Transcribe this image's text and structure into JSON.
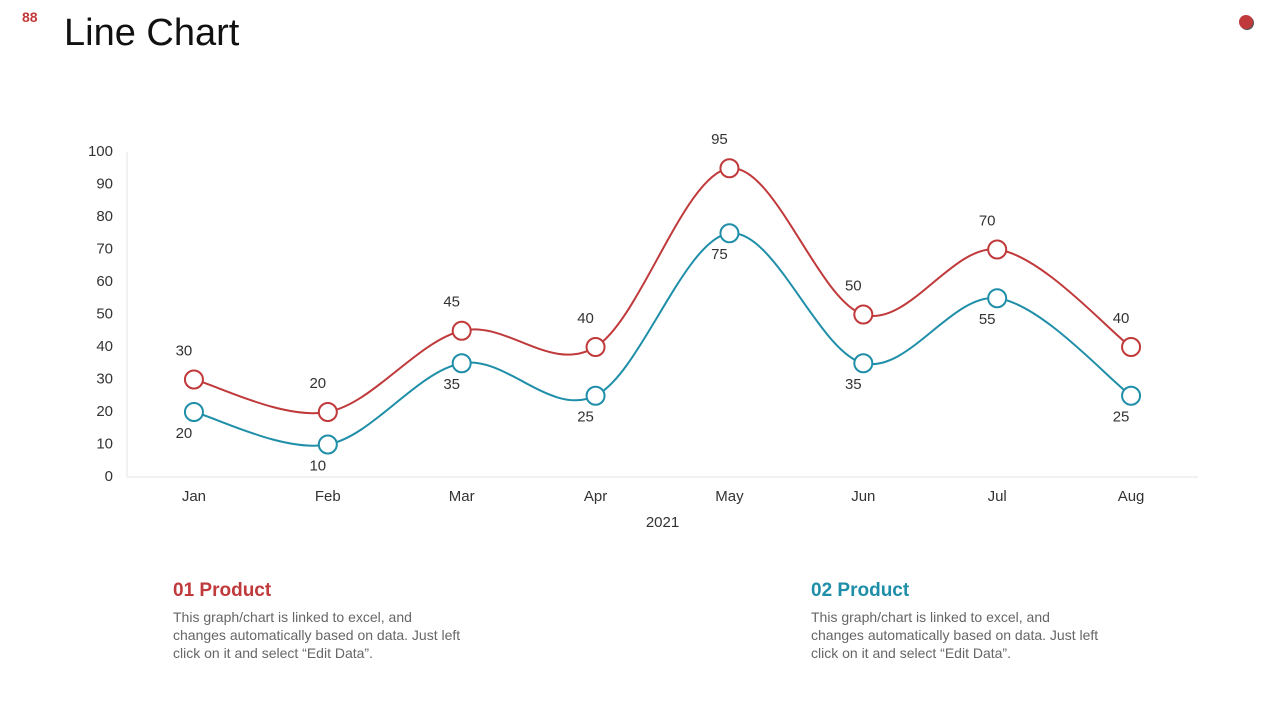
{
  "slide": {
    "number": "88",
    "title": "Line Chart"
  },
  "chart_data": {
    "type": "line",
    "categories": [
      "Jan",
      "Feb",
      "Mar",
      "Apr",
      "May",
      "Jun",
      "Jul",
      "Aug"
    ],
    "xlabel": "2021",
    "series": [
      {
        "name": "01 Product",
        "color": "#c0393b",
        "values": [
          30,
          20,
          45,
          40,
          95,
          50,
          70,
          40
        ]
      },
      {
        "name": "02 Product",
        "color": "#1f8ea8",
        "values": [
          20,
          10,
          35,
          25,
          75,
          35,
          55,
          25
        ]
      }
    ],
    "ylim": [
      0,
      100
    ],
    "yticks": [
      0,
      10,
      20,
      30,
      40,
      50,
      60,
      70,
      80,
      90,
      100
    ],
    "grid": false
  },
  "notes": [
    {
      "heading": "01 Product",
      "text": "This graph/chart is linked to excel, and changes automatically based on data. Just left click on it and select “Edit Data”."
    },
    {
      "heading": "02 Product",
      "text": "This graph/chart is linked to excel, and changes automatically based on data. Just left click on it and select “Edit Data”."
    }
  ]
}
